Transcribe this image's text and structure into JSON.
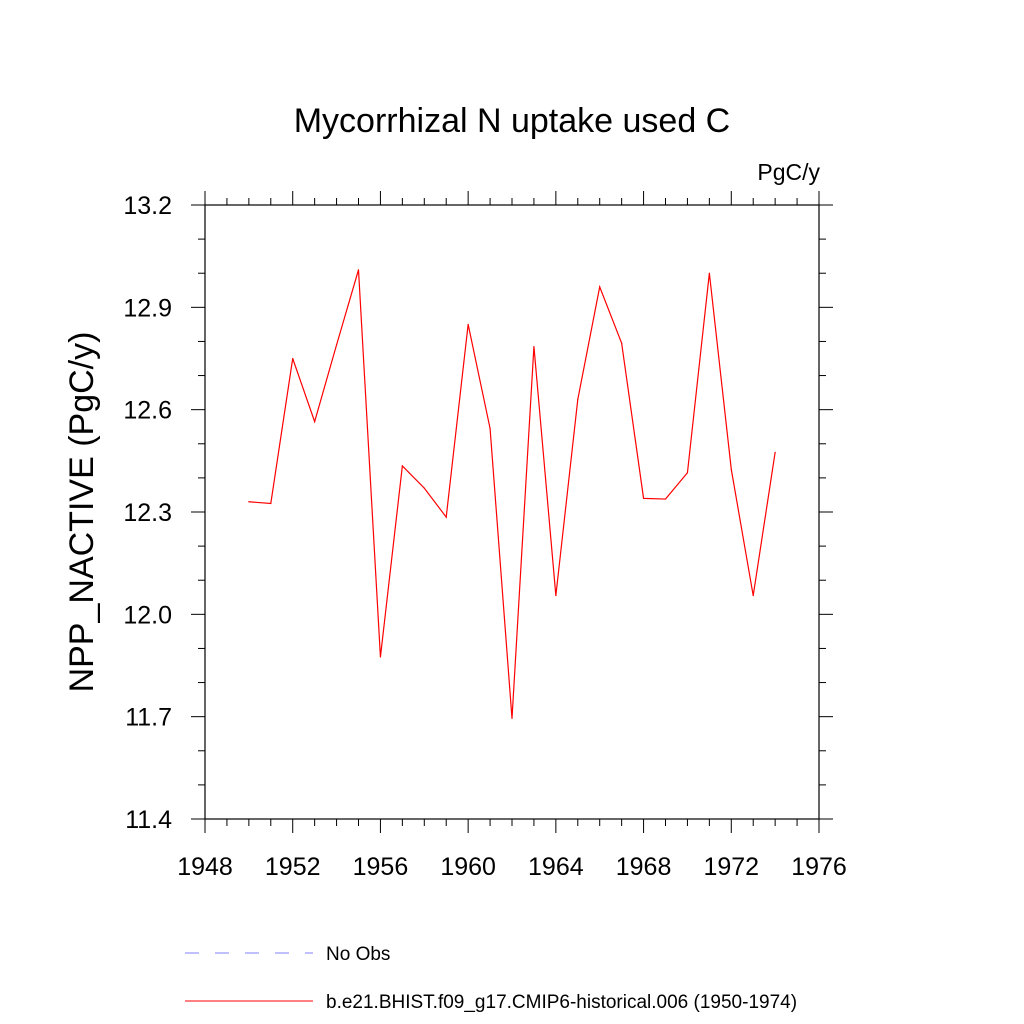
{
  "chart_data": {
    "type": "line",
    "title": "Mycorrhizal N uptake used C",
    "units": "PgC/y",
    "ylabel": "NPP_NACTIVE  (PgC/y)",
    "xlabel": "",
    "xlim": [
      1948,
      1976
    ],
    "ylim": [
      11.4,
      13.2
    ],
    "xticks": [
      1948,
      1952,
      1956,
      1960,
      1964,
      1968,
      1972,
      1976
    ],
    "yticks": [
      11.4,
      11.7,
      12.0,
      12.3,
      12.6,
      12.9,
      13.2
    ],
    "ytick_labels": [
      "11.4",
      "11.7",
      "12.0",
      "12.3",
      "12.6",
      "12.9",
      "13.2"
    ],
    "grid": false,
    "legend_position": "bottom",
    "series": [
      {
        "name": "b.e21.BHIST.f09_g17.CMIP6-historical.006 (1950-1974)",
        "color": "#ff0000",
        "style": "solid",
        "x": [
          1950,
          1951,
          1952,
          1953,
          1954,
          1955,
          1956,
          1957,
          1958,
          1959,
          1960,
          1961,
          1962,
          1963,
          1964,
          1965,
          1966,
          1967,
          1968,
          1969,
          1970,
          1971,
          1972,
          1973,
          1974
        ],
        "y": [
          12.33,
          12.325,
          12.75,
          12.565,
          12.79,
          13.01,
          11.875,
          12.435,
          12.37,
          12.285,
          12.85,
          12.545,
          11.695,
          12.785,
          12.055,
          12.63,
          12.96,
          12.795,
          12.34,
          12.338,
          12.415,
          13.0,
          12.425,
          12.055,
          12.475
        ]
      }
    ],
    "legend": [
      {
        "label": "No Obs",
        "color": "#8080ff",
        "style": "dashed"
      },
      {
        "label": "b.e21.BHIST.f09_g17.CMIP6-historical.006 (1950-1974)",
        "color": "#ff0000",
        "style": "solid"
      }
    ]
  }
}
